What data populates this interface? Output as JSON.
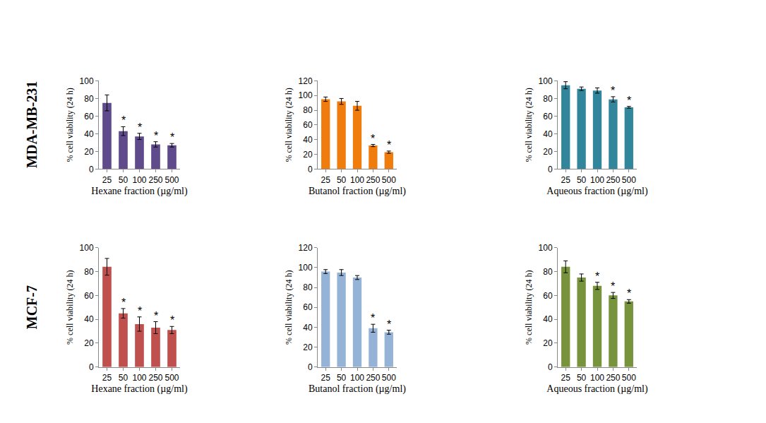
{
  "row_labels": [
    "MDA-MB-231",
    "MCF-7"
  ],
  "chart_data": [
    {
      "type": "bar",
      "row": 0,
      "xlabel": "Hexane fraction (µg/ml)",
      "ylabel": "% cell viability (24 h)",
      "categories": [
        "25",
        "50",
        "100",
        "250",
        "500"
      ],
      "values": [
        75,
        43,
        37,
        28,
        27
      ],
      "errors": [
        9,
        5,
        3.5,
        3,
        2
      ],
      "annotations": [
        null,
        "*",
        "*",
        "*",
        "*"
      ],
      "color": "#5f4a8b",
      "ylim": [
        0,
        100
      ],
      "yticks": [
        0,
        20,
        40,
        60,
        80,
        100
      ],
      "grid": false
    },
    {
      "type": "bar",
      "row": 0,
      "xlabel": "Butanol fraction (µg/ml)",
      "ylabel": "% cell viability (24 h)",
      "categories": [
        "25",
        "50",
        "100",
        "250",
        "500"
      ],
      "values": [
        95,
        92,
        86,
        32,
        23
      ],
      "errors": [
        3,
        4,
        6,
        1.5,
        1.5
      ],
      "annotations": [
        null,
        null,
        null,
        "*",
        "*"
      ],
      "color": "#f07c0e",
      "ylim": [
        0,
        120
      ],
      "yticks": [
        0,
        20,
        40,
        60,
        80,
        100,
        120
      ],
      "grid": false
    },
    {
      "type": "bar",
      "row": 0,
      "xlabel": "Aqueous fraction (µg/ml)",
      "ylabel": "% cell viability (24 h)",
      "categories": [
        "25",
        "50",
        "100",
        "250",
        "500"
      ],
      "values": [
        95,
        91,
        89,
        79,
        70
      ],
      "errors": [
        4,
        2,
        3,
        3,
        1
      ],
      "annotations": [
        null,
        null,
        null,
        "*",
        "*"
      ],
      "color": "#31869b",
      "ylim": [
        0,
        100
      ],
      "yticks": [
        0,
        20,
        40,
        60,
        80,
        100
      ],
      "grid": false
    },
    {
      "type": "bar",
      "row": 1,
      "xlabel": "Hexane fraction (µg/ml)",
      "ylabel": "% cell viability (24 h)",
      "categories": [
        "25",
        "50",
        "100",
        "250",
        "500"
      ],
      "values": [
        84,
        45,
        36,
        33,
        31
      ],
      "errors": [
        7,
        4,
        6,
        5,
        3
      ],
      "annotations": [
        null,
        "*",
        "*",
        "*",
        "*"
      ],
      "color": "#c0504d",
      "ylim": [
        0,
        100
      ],
      "yticks": [
        0,
        20,
        40,
        60,
        80,
        100
      ],
      "grid": false
    },
    {
      "type": "bar",
      "row": 1,
      "xlabel": "Butanol fraction (µg/ml)",
      "ylabel": "% cell viability (24 h)",
      "categories": [
        "25",
        "50",
        "100",
        "250",
        "500"
      ],
      "values": [
        96,
        95,
        90,
        39,
        35
      ],
      "errors": [
        2,
        3,
        2,
        4,
        2
      ],
      "annotations": [
        null,
        null,
        null,
        "*",
        "*"
      ],
      "color": "#95b3d7",
      "ylim": [
        0,
        120
      ],
      "yticks": [
        0,
        20,
        40,
        60,
        80,
        100,
        120
      ],
      "grid": false
    },
    {
      "type": "bar",
      "row": 1,
      "xlabel": "Aqueous fraction (µg/ml)",
      "ylabel": "% cell viability (24 h)",
      "categories": [
        "25",
        "50",
        "100",
        "250",
        "500"
      ],
      "values": [
        84,
        75,
        68,
        60,
        55
      ],
      "errors": [
        5,
        3,
        3,
        2.5,
        1.5
      ],
      "annotations": [
        null,
        null,
        "*",
        "*",
        "*"
      ],
      "color": "#77933c",
      "ylim": [
        0,
        100
      ],
      "yticks": [
        0,
        20,
        40,
        60,
        80,
        100
      ],
      "grid": false
    }
  ]
}
